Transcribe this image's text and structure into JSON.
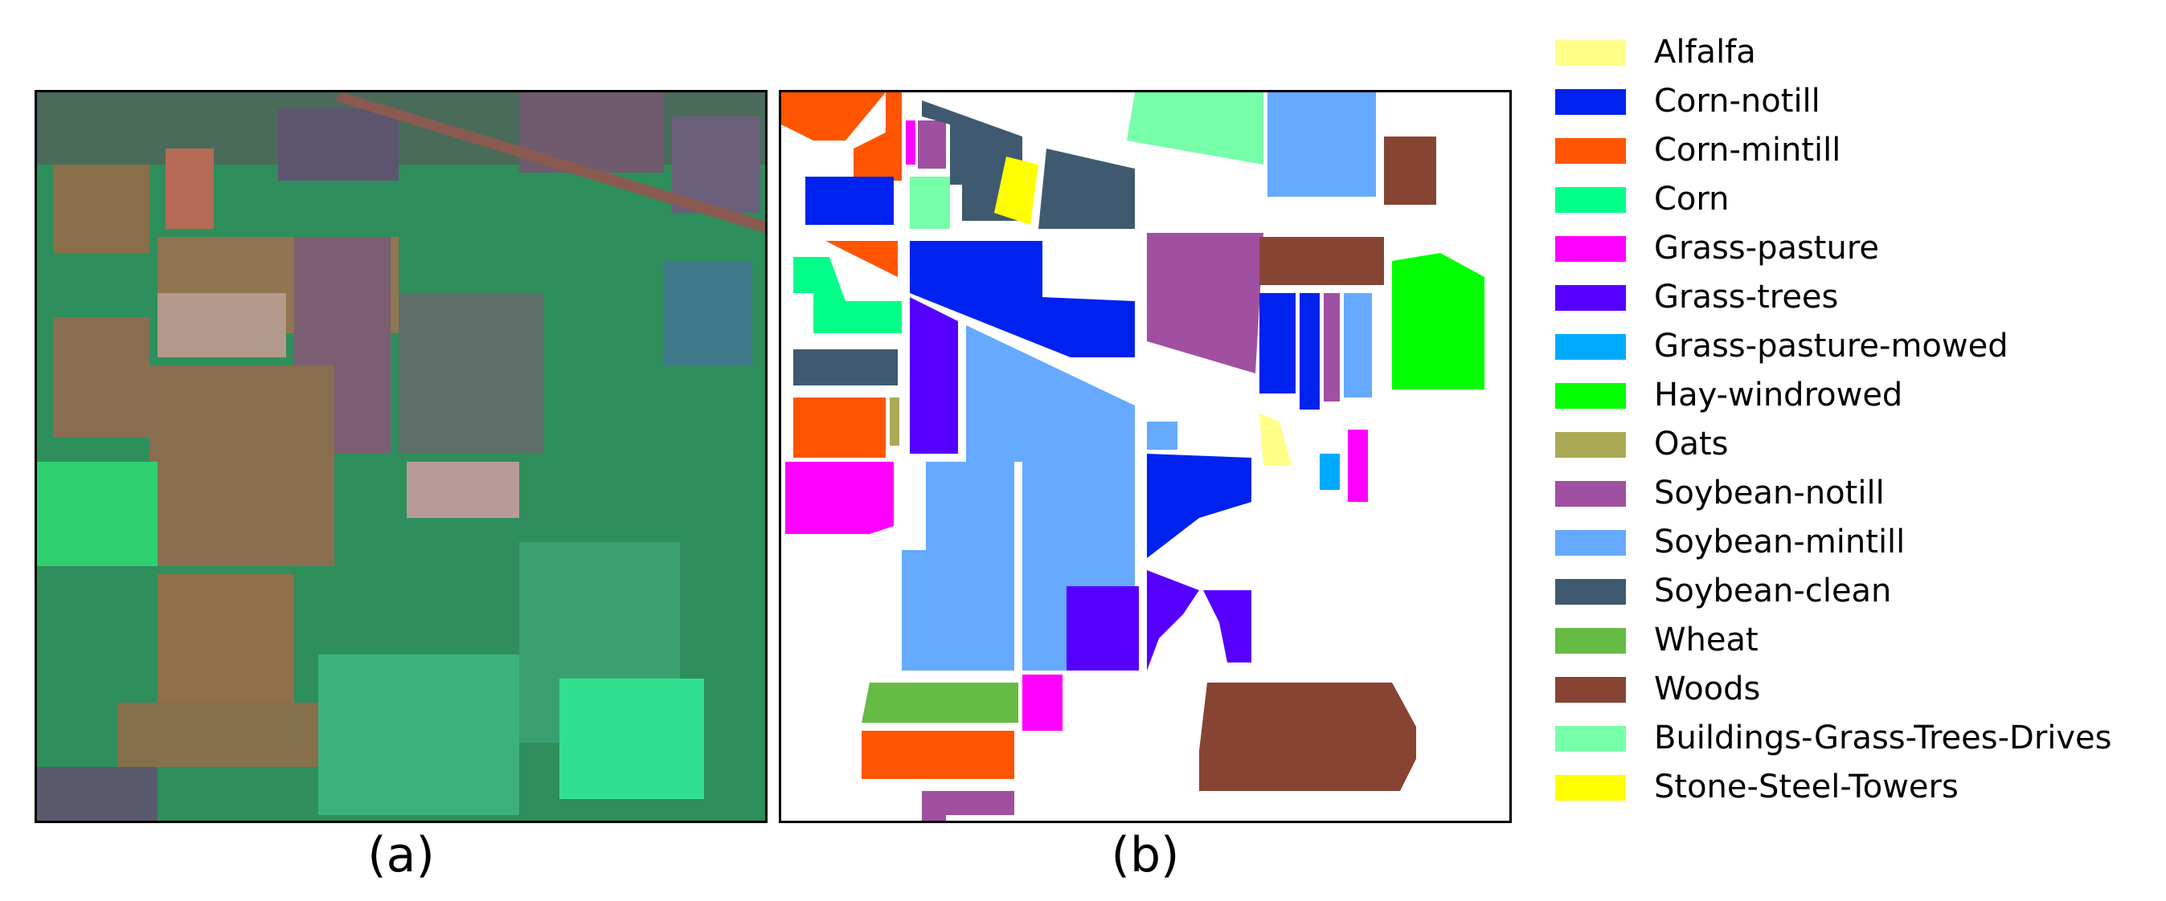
{
  "panels": [
    {
      "caption": "(a)"
    },
    {
      "caption": "(b)"
    }
  ],
  "legend": [
    {
      "label": "Alfalfa",
      "color": "#ffff88"
    },
    {
      "label": "Corn-notill",
      "color": "#0022ee"
    },
    {
      "label": "Corn-mintill",
      "color": "#ff5500"
    },
    {
      "label": "Corn",
      "color": "#00ff88"
    },
    {
      "label": "Grass-pasture",
      "color": "#ff00ff"
    },
    {
      "label": "Grass-trees",
      "color": "#5500ff"
    },
    {
      "label": "Grass-pasture-mowed",
      "color": "#00aaff"
    },
    {
      "label": "Hay-windrowed",
      "color": "#00ff00"
    },
    {
      "label": "Oats",
      "color": "#aaaa55"
    },
    {
      "label": "Soybean-notill",
      "color": "#a050a0"
    },
    {
      "label": "Soybean-mintill",
      "color": "#66aaff"
    },
    {
      "label": "Soybean-clean",
      "color": "#3f5a70"
    },
    {
      "label": "Wheat",
      "color": "#66bb44"
    },
    {
      "label": "Woods",
      "color": "#884433"
    },
    {
      "label": "Buildings-Grass-Trees-Drives",
      "color": "#77ffaa"
    },
    {
      "label": "Stone-Steel-Towers",
      "color": "#ffff00"
    }
  ]
}
